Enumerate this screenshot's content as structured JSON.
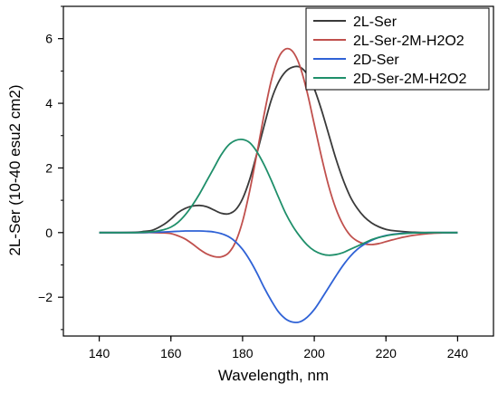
{
  "chart_data": {
    "type": "line",
    "xlabel": "Wavelength, nm",
    "ylabel": "2L-Ser (10-40 esu2 cm2)",
    "xlim": [
      130,
      250
    ],
    "ylim": [
      -3.2,
      7.0
    ],
    "x_ticks": [
      140,
      160,
      180,
      200,
      220,
      240
    ],
    "y_ticks": [
      -2,
      0,
      2,
      4,
      6
    ],
    "grid": false,
    "legend_position": "top-right",
    "x": [
      140,
      145,
      150,
      152,
      155,
      158,
      160,
      162,
      164,
      166,
      168,
      170,
      172,
      174,
      176,
      178,
      180,
      182,
      184,
      186,
      188,
      190,
      192,
      194,
      196,
      198,
      200,
      202,
      204,
      206,
      208,
      210,
      212,
      214,
      216,
      218,
      220,
      222,
      225,
      228,
      232,
      236,
      240
    ],
    "series": [
      {
        "name": "2L-Ser",
        "color": "#3a3a3a",
        "values": [
          0,
          0,
          0.01,
          0.03,
          0.08,
          0.25,
          0.42,
          0.62,
          0.75,
          0.82,
          0.84,
          0.8,
          0.7,
          0.6,
          0.58,
          0.7,
          1.05,
          1.65,
          2.45,
          3.3,
          4.1,
          4.65,
          4.98,
          5.12,
          5.12,
          4.9,
          4.45,
          3.8,
          3.05,
          2.3,
          1.65,
          1.12,
          0.75,
          0.48,
          0.3,
          0.18,
          0.1,
          0.06,
          0.03,
          0.01,
          0,
          0,
          0
        ]
      },
      {
        "name": "2L-Ser-2M-H2O2",
        "color": "#c0504d",
        "values": [
          0,
          0,
          0,
          0,
          0,
          -0.01,
          -0.03,
          -0.1,
          -0.2,
          -0.35,
          -0.52,
          -0.66,
          -0.74,
          -0.75,
          -0.64,
          -0.3,
          0.35,
          1.3,
          2.45,
          3.65,
          4.7,
          5.4,
          5.68,
          5.6,
          5.15,
          4.35,
          3.35,
          2.35,
          1.45,
          0.75,
          0.25,
          -0.08,
          -0.26,
          -0.35,
          -0.37,
          -0.34,
          -0.28,
          -0.22,
          -0.14,
          -0.08,
          -0.03,
          -0.01,
          0
        ]
      },
      {
        "name": "2D-Ser",
        "color": "#2f62d6",
        "values": [
          0,
          0,
          0,
          0,
          0.01,
          0.02,
          0.03,
          0.04,
          0.05,
          0.05,
          0.05,
          0.04,
          0.02,
          -0.03,
          -0.12,
          -0.28,
          -0.52,
          -0.85,
          -1.25,
          -1.7,
          -2.1,
          -2.45,
          -2.67,
          -2.77,
          -2.76,
          -2.62,
          -2.38,
          -2.05,
          -1.7,
          -1.35,
          -1.02,
          -0.74,
          -0.52,
          -0.36,
          -0.24,
          -0.15,
          -0.09,
          -0.05,
          -0.02,
          -0.01,
          0,
          0,
          0
        ]
      },
      {
        "name": "2D-Ser-2M-H2O2",
        "color": "#1f8f6a",
        "values": [
          0,
          0,
          0,
          0.01,
          0.03,
          0.09,
          0.17,
          0.32,
          0.55,
          0.85,
          1.2,
          1.6,
          2.0,
          2.4,
          2.7,
          2.85,
          2.88,
          2.78,
          2.5,
          2.1,
          1.62,
          1.1,
          0.6,
          0.2,
          -0.12,
          -0.38,
          -0.56,
          -0.66,
          -0.7,
          -0.68,
          -0.62,
          -0.52,
          -0.42,
          -0.32,
          -0.22,
          -0.15,
          -0.1,
          -0.06,
          -0.03,
          -0.01,
          0,
          0,
          0
        ]
      }
    ]
  }
}
